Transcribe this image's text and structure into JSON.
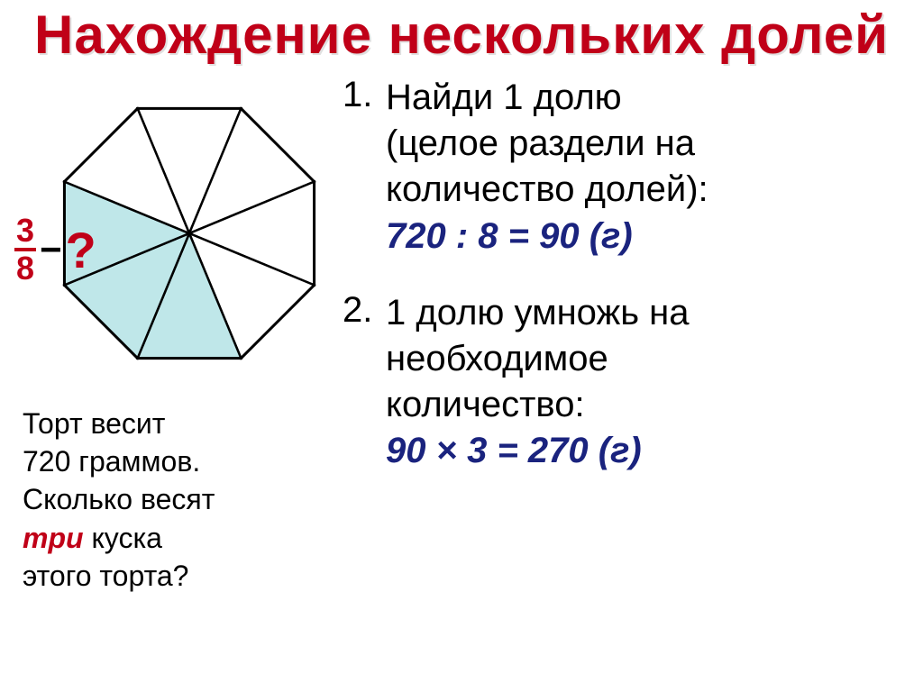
{
  "title": {
    "text": "Нахождение  нескольких  долей",
    "color": "#c00018",
    "text_shadow": "2px 2px 0 #e0e0e0"
  },
  "octagon": {
    "stroke": "#000000",
    "fill_empty": "#ffffff",
    "fill_shaded": "#bfe7e9",
    "shaded_slices": [
      4,
      5,
      6
    ],
    "total_slices": 8
  },
  "fraction_label": {
    "numerator": "3",
    "denominator": "8",
    "num_color": "#c00018",
    "dash": "−",
    "dash_color": "#000000",
    "q": "?",
    "q_color": "#c00018",
    "q_fontsize": 56
  },
  "problem": {
    "line1": "Торт  весит",
    "line2": "720  граммов.",
    "line3": "Сколько  весят",
    "three_word": "три",
    "three_color": "#c00018",
    "line4": "  куска",
    "line5": "этого  торта?",
    "text_color": "#000000"
  },
  "steps": [
    {
      "num": "1.",
      "lines": [
        "Найди  1  долю",
        "(целое  раздели на",
        "количество  долей):"
      ],
      "equation": "720 : 8 = 90 (г)",
      "text_color": "#000000",
      "eq_color": "#1a237e"
    },
    {
      "num": "2.",
      "lines": [
        "1  долю  умножь  на",
        "необходимое",
        "количество:"
      ],
      "equation": "90 × 3 = 270 (г)",
      "text_color": "#000000",
      "eq_color": "#1a237e"
    }
  ]
}
